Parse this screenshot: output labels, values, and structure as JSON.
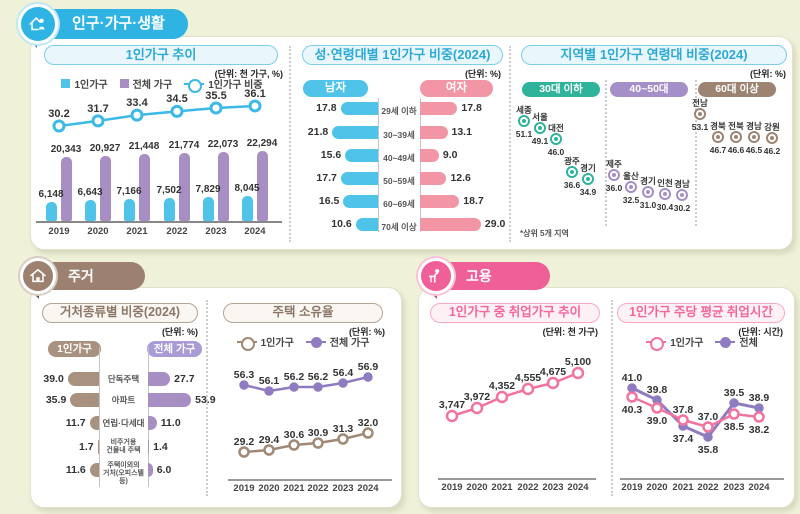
{
  "sections": {
    "population": {
      "title": "인구·가구·생활"
    },
    "housing": {
      "title": "주거"
    },
    "employment": {
      "title": "고용"
    }
  },
  "panels": {
    "trend": {
      "title": "1인가구 추이",
      "unit": "(단위: 천 가구, %)",
      "legend": [
        "1인가구",
        "전체 가구",
        "1인가구 비중"
      ]
    },
    "gender_age": {
      "title": "성·연령대별 1인가구 비중(2024)",
      "unit": "(단위: %)",
      "male_label": "남자",
      "female_label": "여자"
    },
    "region": {
      "title": "지역별 1인가구 연령대 비중(2024)",
      "unit": "(단위: %)",
      "footnote": "*상위 5개 지역"
    },
    "dwelling": {
      "title": "거처종류별 비중(2024)",
      "unit": "(단위: %)",
      "left_label": "1인가구",
      "right_label": "전체 가구"
    },
    "ownership": {
      "title": "주택 소유율",
      "unit": "(단위: %)",
      "legend": [
        "1인가구",
        "전체 가구"
      ]
    },
    "employed": {
      "title": "1인가구 중 취업가구 추이",
      "unit": "(단위: 천 가구)"
    },
    "hours": {
      "title": "1인가구 주당 평균 취업시간",
      "unit": "(단위: 시간)",
      "legend": [
        "1인가구",
        "전체"
      ]
    }
  },
  "colors": {
    "cyan": "#3cb9e6",
    "blue_bar": "#4fc3e8",
    "purple_bar": "#a78fc4",
    "purple_line": "#8f7cc0",
    "pink_bar": "#f295a4",
    "pink_line": "#f2739f",
    "teal": "#2fb49b",
    "scatter_purple": "#a48fc8",
    "scatter_brown": "#9d8372",
    "housing_brown": "#a8917e",
    "housing_purple": "#a99bd6",
    "header_blue": "#2eb3e3",
    "header_brown": "#9c8170",
    "header_pink": "#ef5f98"
  },
  "chart_data": [
    {
      "id": "trend",
      "type": "bar+line",
      "title": "1인가구 추이",
      "unit": "천 가구, %",
      "categories": [
        "2019",
        "2020",
        "2021",
        "2022",
        "2023",
        "2024"
      ],
      "series": [
        {
          "name": "1인가구",
          "type": "bar",
          "values": [
            6148,
            6643,
            7166,
            7502,
            7829,
            8045
          ],
          "labels": [
            "6,148",
            "6,643",
            "7,166",
            "7,502",
            "7,829",
            "8,045"
          ]
        },
        {
          "name": "전체 가구",
          "type": "bar",
          "values": [
            20343,
            20927,
            21448,
            21774,
            22073,
            22294
          ],
          "labels": [
            "20,343",
            "20,927",
            "21,448",
            "21,774",
            "22,073",
            "22,294"
          ]
        },
        {
          "name": "1인가구 비중",
          "type": "line",
          "values": [
            30.2,
            31.7,
            33.4,
            34.5,
            35.5,
            36.1
          ],
          "labels": [
            "30.2",
            "31.7",
            "33.4",
            "34.5",
            "35.5",
            "36.1"
          ]
        }
      ]
    },
    {
      "id": "gender_age",
      "type": "bar",
      "title": "성·연령대별 1인가구 비중(2024)",
      "unit": "%",
      "categories": [
        "29세 이하",
        "30~39세",
        "40~49세",
        "50~59세",
        "60~69세",
        "70세 이상"
      ],
      "series": [
        {
          "name": "남자",
          "values": [
            17.8,
            21.8,
            15.6,
            17.7,
            16.5,
            10.6
          ],
          "labels": [
            "17.8",
            "21.8",
            "15.6",
            "17.7",
            "16.5",
            "10.6"
          ]
        },
        {
          "name": "여자",
          "values": [
            17.8,
            13.1,
            9.0,
            12.6,
            18.7,
            29.0
          ],
          "labels": [
            "17.8",
            "13.1",
            "9.0",
            "12.6",
            "18.7",
            "29.0"
          ]
        }
      ]
    },
    {
      "id": "region",
      "type": "scatter",
      "title": "지역별 1인가구 연령대 비중(2024)",
      "unit": "%",
      "footnote": "*상위 5개 지역",
      "groups": [
        {
          "label": "30대 이하",
          "color": "#2fb49b",
          "points": [
            {
              "name": "세종",
              "value": 51.1,
              "label": "51.1"
            },
            {
              "name": "서울",
              "value": 49.1,
              "label": "49.1"
            },
            {
              "name": "대전",
              "value": 46.0,
              "label": "46.0"
            },
            {
              "name": "광주",
              "value": 36.6,
              "label": "36.6"
            },
            {
              "name": "경기",
              "value": 34.9,
              "label": "34.9"
            }
          ]
        },
        {
          "label": "40~50대",
          "color": "#a48fc8",
          "points": [
            {
              "name": "제주",
              "value": 36.0,
              "label": "36.0"
            },
            {
              "name": "울산",
              "value": 32.5,
              "label": "32.5"
            },
            {
              "name": "경기",
              "value": 31.0,
              "label": "31.0"
            },
            {
              "name": "인천",
              "value": 30.4,
              "label": "30.4"
            },
            {
              "name": "경남",
              "value": 30.2,
              "label": "30.2"
            }
          ]
        },
        {
          "label": "60대 이상",
          "color": "#9d8372",
          "points": [
            {
              "name": "전남",
              "value": 53.1,
              "label": "53.1"
            },
            {
              "name": "경북",
              "value": 46.7,
              "label": "46.7"
            },
            {
              "name": "전북",
              "value": 46.6,
              "label": "46.6"
            },
            {
              "name": "경남",
              "value": 46.5,
              "label": "46.5"
            },
            {
              "name": "강원",
              "value": 46.2,
              "label": "46.2"
            }
          ]
        }
      ]
    },
    {
      "id": "dwelling",
      "type": "bar",
      "title": "거처종류별 비중(2024)",
      "unit": "%",
      "categories": [
        "단독주택",
        "아파트",
        "연립·다세대",
        "비주거용 건물내 주택",
        "주택이외의 거처(오피스텔 등)"
      ],
      "display_lines": [
        [
          "단독주택"
        ],
        [
          "아파트"
        ],
        [
          "연립·다세대"
        ],
        [
          "비주거용",
          "건물내 주택"
        ],
        [
          "주택이외의",
          "거처(오피스텔 등)"
        ]
      ],
      "series": [
        {
          "name": "1인가구",
          "values": [
            39.0,
            35.9,
            11.7,
            1.7,
            11.6
          ],
          "labels": [
            "39.0",
            "35.9",
            "11.7",
            "1.7",
            "11.6"
          ]
        },
        {
          "name": "전체 가구",
          "values": [
            27.7,
            53.9,
            11.0,
            1.4,
            6.0
          ],
          "labels": [
            "27.7",
            "53.9",
            "11.0",
            "1.4",
            "6.0"
          ]
        }
      ]
    },
    {
      "id": "ownership",
      "type": "line",
      "title": "주택 소유율",
      "unit": "%",
      "categories": [
        "2019",
        "2020",
        "2021",
        "2022",
        "2023",
        "2024"
      ],
      "series": [
        {
          "name": "1인가구",
          "values": [
            29.2,
            29.4,
            30.6,
            30.9,
            31.3,
            32.0
          ],
          "labels": [
            "29.2",
            "29.4",
            "30.6",
            "30.9",
            "31.3",
            "32.0"
          ]
        },
        {
          "name": "전체 가구",
          "values": [
            56.3,
            56.1,
            56.2,
            56.2,
            56.4,
            56.9
          ],
          "labels": [
            "56.3",
            "56.1",
            "56.2",
            "56.2",
            "56.4",
            "56.9"
          ]
        }
      ]
    },
    {
      "id": "employed",
      "type": "line",
      "title": "1인가구 중 취업가구 추이",
      "unit": "천 가구",
      "categories": [
        "2019",
        "2020",
        "2021",
        "2022",
        "2023",
        "2024"
      ],
      "series": [
        {
          "name": "취업가구",
          "values": [
            3747,
            3972,
            4352,
            4555,
            4675,
            5100
          ],
          "labels": [
            "3,747",
            "3,972",
            "4,352",
            "4,555",
            "4,675",
            "5,100"
          ]
        }
      ]
    },
    {
      "id": "hours",
      "type": "line",
      "title": "1인가구 주당 평균 취업시간",
      "unit": "시간",
      "categories": [
        "2019",
        "2020",
        "2021",
        "2022",
        "2023",
        "2024"
      ],
      "series": [
        {
          "name": "1인가구",
          "values": [
            40.3,
            39.0,
            37.8,
            37.0,
            38.5,
            38.2
          ],
          "labels": [
            "40.3",
            "39.0",
            "37.8",
            "37.0",
            "38.5",
            "38.2"
          ]
        },
        {
          "name": "전체",
          "values": [
            41.0,
            39.8,
            37.4,
            35.8,
            39.5,
            38.9
          ],
          "labels": [
            "41.0",
            "39.8",
            "37.4",
            "35.8",
            "39.5",
            "38.9"
          ]
        }
      ]
    }
  ]
}
